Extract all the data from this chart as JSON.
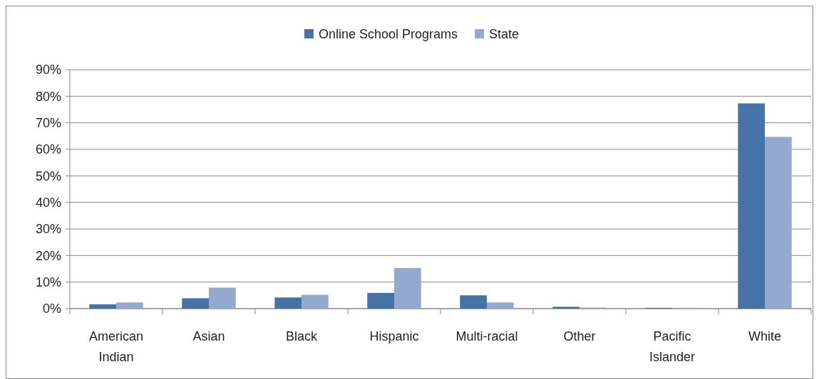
{
  "chart_data": {
    "type": "bar",
    "categories": [
      "American Indian",
      "Asian",
      "Black",
      "Hispanic",
      "Multi-racial",
      "Other",
      "Pacific Islander",
      "White"
    ],
    "series": [
      {
        "name": "Online School Programs",
        "color": "#4572a7",
        "values": [
          1.6,
          3.9,
          4.2,
          5.9,
          5.0,
          0.7,
          0.3,
          77.3
        ]
      },
      {
        "name": "State",
        "color": "#93a9cf",
        "values": [
          2.3,
          7.9,
          5.2,
          15.3,
          2.3,
          0.4,
          0.3,
          64.7
        ]
      }
    ],
    "ylim": [
      0,
      90
    ],
    "yticks": [
      {
        "value": 0,
        "label": "0%"
      },
      {
        "value": 10,
        "label": "10%"
      },
      {
        "value": 20,
        "label": "20%"
      },
      {
        "value": 30,
        "label": "30%"
      },
      {
        "value": 40,
        "label": "40%"
      },
      {
        "value": 50,
        "label": "50%"
      },
      {
        "value": 60,
        "label": "60%"
      },
      {
        "value": 70,
        "label": "70%"
      },
      {
        "value": 80,
        "label": "80%"
      },
      {
        "value": 90,
        "label": "90%"
      }
    ],
    "grid": "y",
    "legend": "top"
  }
}
